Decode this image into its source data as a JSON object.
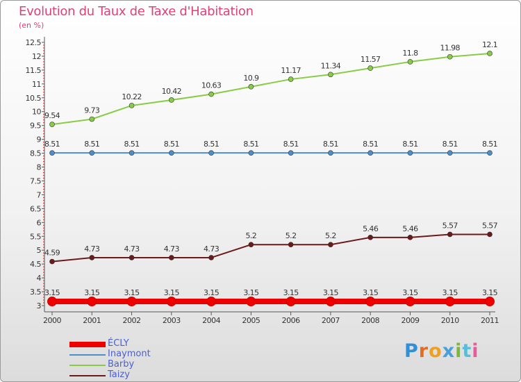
{
  "title": "Evolution du Taux de Taxe d'Habitation",
  "unit": "(en %)",
  "logo": "Proxiti",
  "chart_data": {
    "type": "line",
    "x": [
      "2000",
      "2001",
      "2002",
      "2003",
      "2004",
      "2005",
      "2006",
      "2007",
      "2008",
      "2009",
      "2010",
      "2011"
    ],
    "ylim": [
      3,
      12.5
    ],
    "yticks": [
      "3",
      "3.5",
      "4",
      "4.5",
      "5",
      "5.5",
      "6",
      "6.5",
      "7",
      "7.5",
      "8",
      "8.5",
      "9",
      "9.5",
      "10",
      "10.5",
      "11",
      "11.5",
      "12",
      "12.5"
    ],
    "grid": false,
    "legend_position": "bottom-left",
    "series": [
      {
        "name": "ÉCLY",
        "color": "#ee0000",
        "values": [
          3.15,
          3.15,
          3.15,
          3.15,
          3.15,
          3.15,
          3.15,
          3.15,
          3.15,
          3.15,
          3.15,
          3.15
        ],
        "labels": [
          "3.15",
          "3.15",
          "3.15",
          "3.15",
          "3.15",
          "3.15",
          "3.15",
          "3.15",
          "3.15",
          "3.15",
          "3.15",
          "3.15"
        ]
      },
      {
        "name": "Inaymont",
        "color": "#4d8ec8",
        "values": [
          8.51,
          8.51,
          8.51,
          8.51,
          8.51,
          8.51,
          8.51,
          8.51,
          8.51,
          8.51,
          8.51,
          8.51
        ],
        "labels": [
          "8.51",
          "8.51",
          "8.51",
          "8.51",
          "8.51",
          "8.51",
          "8.51",
          "8.51",
          "8.51",
          "8.51",
          "8.51",
          "8.51"
        ]
      },
      {
        "name": "Barby",
        "color": "#88cc44",
        "values": [
          9.54,
          9.73,
          10.22,
          10.42,
          10.63,
          10.9,
          11.17,
          11.34,
          11.57,
          11.8,
          11.98,
          12.1
        ],
        "labels": [
          "9.54",
          "9.73",
          "10.22",
          "10.42",
          "10.63",
          "10.9",
          "11.17",
          "11.34",
          "11.57",
          "11.8",
          "11.98",
          "12.1"
        ]
      },
      {
        "name": "Taizy",
        "color": "#6b1a1a",
        "values": [
          4.59,
          4.73,
          4.73,
          4.73,
          4.73,
          5.2,
          5.2,
          5.2,
          5.46,
          5.46,
          5.57,
          5.57
        ],
        "labels": [
          "4.59",
          "4.73",
          "4.73",
          "4.73",
          "4.73",
          "5.2",
          "5.2",
          "5.2",
          "5.46",
          "5.46",
          "5.57",
          "5.57"
        ]
      }
    ]
  }
}
